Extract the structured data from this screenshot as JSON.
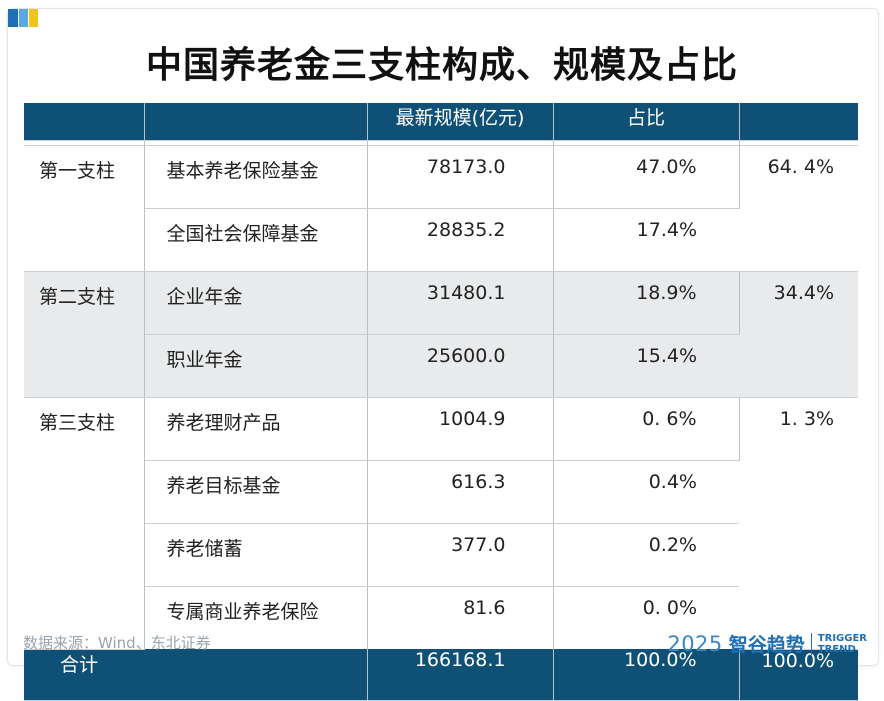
{
  "title": "中国养老金三支柱构成、规模及占比",
  "header": {
    "col1": "",
    "col2": "",
    "col3": "最新规模(亿元)",
    "col4": "占比",
    "col5": ""
  },
  "rows": [
    {
      "pillar": "第一支柱",
      "name": "基本养老保险基金",
      "scale": "78173.0",
      "pct": "47.0%",
      "share": "64. 4%"
    },
    {
      "pillar": "",
      "name": "全国社会保障基金",
      "scale": "28835.2",
      "pct": "17.4%",
      "share": ""
    },
    {
      "pillar": "第二支柱",
      "name": "企业年金",
      "scale": "31480.1",
      "pct": "18.9%",
      "share": "34.4%"
    },
    {
      "pillar": "",
      "name": "职业年金",
      "scale": "25600.0",
      "pct": "15.4%",
      "share": ""
    },
    {
      "pillar": "第三支柱",
      "name": "养老理财产品",
      "scale": "1004.9",
      "pct": "0. 6%",
      "share": "1. 3%"
    },
    {
      "pillar": "",
      "name": "养老目标基金",
      "scale": "616.3",
      "pct": "0.4%",
      "share": ""
    },
    {
      "pillar": "",
      "name": "养老储蓄",
      "scale": "377.0",
      "pct": "0.2%",
      "share": ""
    },
    {
      "pillar": "",
      "name": "专属商业养老保险",
      "scale": "81.6",
      "pct": "0. 0%",
      "share": ""
    }
  ],
  "total": {
    "label": "合计",
    "scale": "166168.1",
    "pct": "100.0%",
    "share": "100.0%"
  },
  "source": "数据来源：Wind、东北证券",
  "brand": {
    "year": "2025",
    "name": "智谷趋势",
    "en1": "TRIGGER",
    "en2": "TREND"
  },
  "colors": {
    "header_bg": "#0f5176",
    "accent": "#1f6fb5",
    "shade": "#e8eaec"
  }
}
